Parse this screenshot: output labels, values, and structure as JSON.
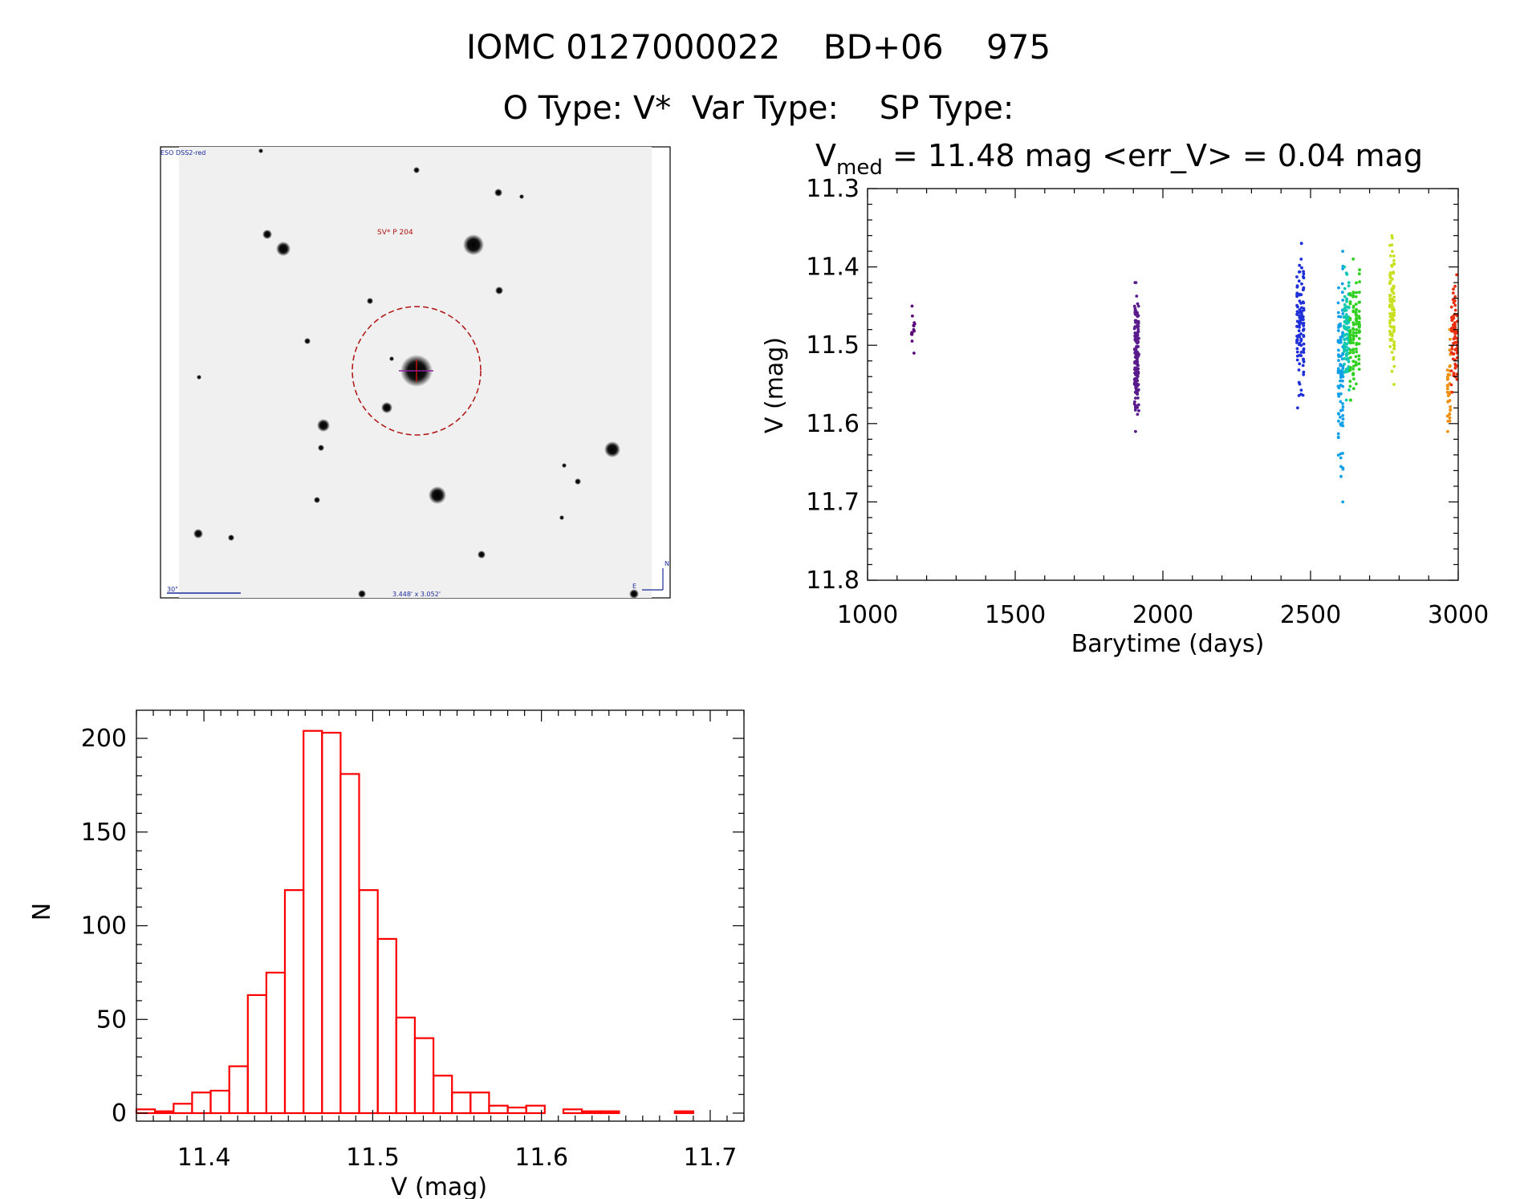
{
  "header": {
    "title": "IOMC 0127000022    BD+06    975",
    "subtitle": "O Type: V*  Var Type:    SP Type:"
  },
  "finder": {
    "survey_label": "ESO DSS2-red",
    "object_label": "SV* P 204",
    "scale_label": "30\"",
    "fov_label": "3.448' x 3.052'",
    "north_label": "N",
    "east_label": "E"
  },
  "chart_data": [
    {
      "type": "scatter",
      "title": "V_med = 11.48 mag <err_V> = 0.04 mag",
      "title_parts": {
        "prefix": "V",
        "subscript": "med",
        "suffix": " = 11.48 mag <err_V> = 0.04 mag"
      },
      "xlabel": "Barytime (days)",
      "ylabel": "V (mag)",
      "xlim": [
        1000,
        3000
      ],
      "ylim": [
        11.8,
        11.3
      ],
      "y_inverted": true,
      "xticks": [
        1000,
        1500,
        2000,
        2500,
        3000
      ],
      "yticks": [
        11.3,
        11.4,
        11.5,
        11.6,
        11.7,
        11.8
      ],
      "ytick_labels": [
        "11.3",
        "11.4",
        "11.5",
        "11.6",
        "11.7",
        "11.8"
      ],
      "series": [
        {
          "color": "#5a0a78",
          "x": [
            1150,
            1152,
            1155,
            1157,
            1159
          ],
          "y_range": [
            11.45,
            11.51
          ],
          "n": 14
        },
        {
          "color": "#5a1c8c",
          "x": [
            1905,
            1908,
            1911,
            1914,
            1917
          ],
          "y_range": [
            11.42,
            11.61
          ],
          "n": 150
        },
        {
          "color": "#2030d8",
          "x": [
            2455,
            2462,
            2469,
            2476
          ],
          "y_range": [
            11.37,
            11.58
          ],
          "n": 110
        },
        {
          "color": "#10a0e8",
          "x": [
            2595,
            2602,
            2609
          ],
          "y_range": [
            11.38,
            11.7
          ],
          "n": 100
        },
        {
          "color": "#10c8b0",
          "x": [
            2615,
            2622,
            2629
          ],
          "y_range": [
            11.4,
            11.57
          ],
          "n": 90
        },
        {
          "color": "#30d020",
          "x": [
            2635,
            2645,
            2655,
            2665
          ],
          "y_range": [
            11.39,
            11.57
          ],
          "n": 110
        },
        {
          "color": "#c8e020",
          "x": [
            2770,
            2776,
            2782
          ],
          "y_range": [
            11.36,
            11.55
          ],
          "n": 100
        },
        {
          "color": "#f09010",
          "x": [
            2965,
            2972
          ],
          "y_range": [
            11.48,
            11.61
          ],
          "n": 35
        },
        {
          "color": "#e83010",
          "x": [
            2978,
            2984,
            2990,
            2996
          ],
          "y_range": [
            11.41,
            11.56
          ],
          "n": 80
        }
      ]
    },
    {
      "type": "bar",
      "subtype": "histogram",
      "xlabel": "V (mag)",
      "ylabel": "N",
      "xlim": [
        11.36,
        11.72
      ],
      "ylim": [
        0,
        215
      ],
      "xticks": [
        11.4,
        11.5,
        11.6,
        11.7
      ],
      "xtick_labels": [
        "11.4",
        "11.5",
        "11.6",
        "11.7"
      ],
      "yticks": [
        0,
        50,
        100,
        150,
        200
      ],
      "yticks_labels": [
        "0",
        "50",
        "100",
        "150",
        "200"
      ],
      "bin_start": 11.36,
      "bin_width": 0.011,
      "values": [
        2,
        1,
        5,
        11,
        12,
        25,
        63,
        75,
        119,
        204,
        203,
        181,
        119,
        93,
        51,
        40,
        20,
        11,
        11,
        4,
        3,
        4,
        0,
        2,
        1,
        1,
        0,
        0,
        0,
        1,
        0
      ],
      "color": "#ff0000"
    }
  ]
}
